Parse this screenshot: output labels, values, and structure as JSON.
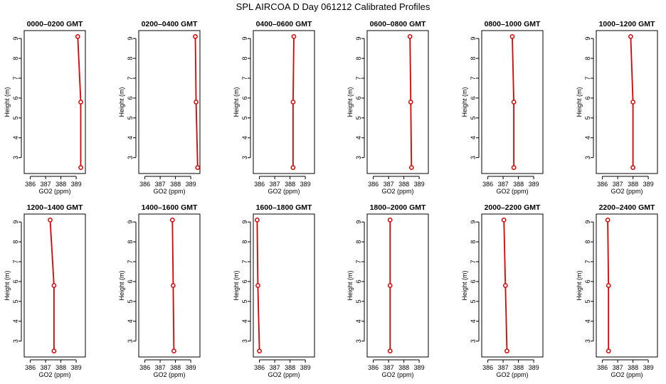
{
  "title": "SPL AIRCOA D  Day 061212  Calibrated Profiles",
  "colors": {
    "profile": "#dd0000",
    "axes": "#000000"
  },
  "chart_data": {
    "type": "line",
    "xlabel": "GO2 (ppm)",
    "ylabel": "Height (m)",
    "xlim": [
      385.6,
      389.6
    ],
    "ylim": [
      2.2,
      9.4
    ],
    "x_ticks": [
      386,
      387,
      388,
      389
    ],
    "y_ticks": [
      3,
      4,
      5,
      6,
      7,
      8,
      9
    ],
    "heights": [
      2.5,
      5.8,
      9.1
    ],
    "panels": [
      {
        "title": "0000–0200 GMT",
        "values": [
          389.3,
          389.3,
          389.1
        ]
      },
      {
        "title": "0200–0400 GMT",
        "values": [
          389.45,
          389.35,
          389.3
        ]
      },
      {
        "title": "0400–0600 GMT",
        "values": [
          388.2,
          388.2,
          388.25
        ]
      },
      {
        "title": "0600–0800 GMT",
        "values": [
          388.5,
          388.45,
          388.4
        ]
      },
      {
        "title": "0800–1000 GMT",
        "values": [
          387.7,
          387.7,
          387.6
        ]
      },
      {
        "title": "1000–1200 GMT",
        "values": [
          388.0,
          388.0,
          387.85
        ]
      },
      {
        "title": "1200–1400 GMT",
        "values": [
          387.55,
          387.55,
          387.3
        ]
      },
      {
        "title": "1400–1600 GMT",
        "values": [
          387.9,
          387.85,
          387.8
        ]
      },
      {
        "title": "1600–1800 GMT",
        "values": [
          386.0,
          385.9,
          385.85
        ]
      },
      {
        "title": "1800–2000 GMT",
        "values": [
          387.1,
          387.1,
          387.1
        ]
      },
      {
        "title": "2000–2200 GMT",
        "values": [
          387.25,
          387.15,
          387.05
        ]
      },
      {
        "title": "2200–2400 GMT",
        "values": [
          386.4,
          386.4,
          386.35
        ]
      }
    ]
  }
}
